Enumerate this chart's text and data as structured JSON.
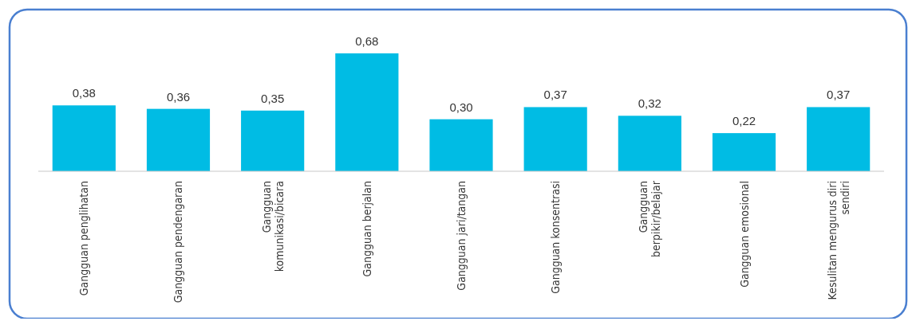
{
  "chart_data": {
    "type": "bar",
    "categories": [
      "Gangguan penglihatan",
      "Gangguan pendengaran",
      "Gangguan komunikasi/bicara",
      "Gangguan berjalan",
      "Gangguan jari/tangan",
      "Gangguan konsentrasi",
      "Gangguan berpikir/belajar",
      "Gangguan emosional",
      "Kesulitan mengurus diri sendiri"
    ],
    "values": [
      0.38,
      0.36,
      0.35,
      0.68,
      0.3,
      0.37,
      0.32,
      0.22,
      0.37
    ],
    "value_labels": [
      "0,38",
      "0,36",
      "0,35",
      "0,68",
      "0,30",
      "0,37",
      "0,32",
      "0,22",
      "0,37"
    ],
    "color": "#00bce4"
  }
}
